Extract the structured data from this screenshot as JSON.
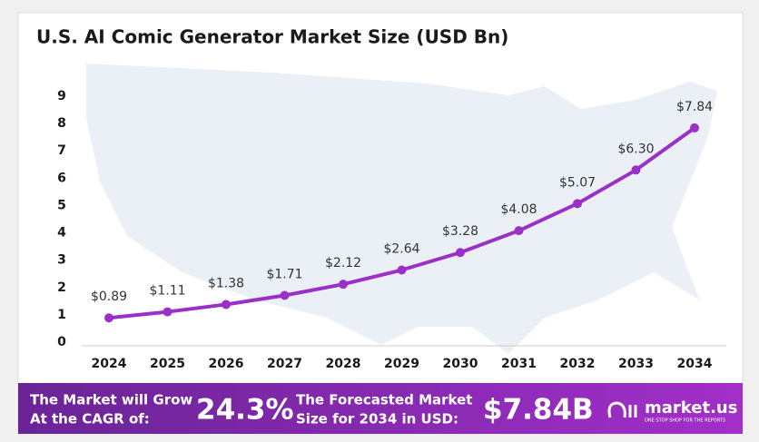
{
  "chart_data": {
    "type": "line",
    "title": "U.S. AI Comic Generator Market Size (USD Bn)",
    "categories": [
      "2024",
      "2025",
      "2026",
      "2027",
      "2028",
      "2029",
      "2030",
      "2031",
      "2032",
      "2033",
      "2034"
    ],
    "series": [
      {
        "name": "Market Size",
        "color": "#9b30c9",
        "values": [
          0.89,
          1.11,
          1.38,
          1.71,
          2.12,
          2.64,
          3.28,
          4.08,
          5.07,
          6.3,
          7.84
        ],
        "value_labels": [
          "$0.89",
          "$1.11",
          "$1.38",
          "$1.71",
          "$2.12",
          "$2.64",
          "$3.28",
          "$4.08",
          "$5.07",
          "$6.30",
          "$7.84"
        ]
      }
    ],
    "ylim": [
      0,
      9
    ],
    "yticks": [
      0,
      1,
      2,
      3,
      4,
      5,
      6,
      7,
      8,
      9
    ],
    "grid": false
  },
  "footer": {
    "cagr_label": [
      "The Market will Grow",
      "At the CAGR of:"
    ],
    "cagr_value": "24.3%",
    "forecast_label": [
      "The Forecasted Market",
      "Size for 2034 in USD:"
    ],
    "forecast_value": "$7.84B",
    "logo": "market.us",
    "tagline": "ONE STOP SHOP FOR THE REPORTS"
  }
}
